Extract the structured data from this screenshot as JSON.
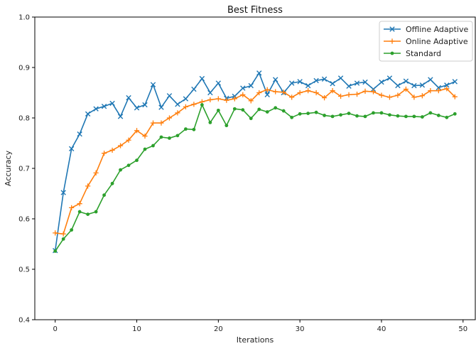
{
  "chart_data": {
    "type": "line",
    "title": "Best Fitness",
    "xlabel": "Iterations",
    "ylabel": "Accuracy",
    "xlim": [
      -2.5,
      51.5
    ],
    "ylim": [
      0.4,
      1.0
    ],
    "xticks": [
      0,
      10,
      20,
      30,
      40,
      50
    ],
    "yticks": [
      0.4,
      0.5,
      0.6,
      0.7,
      0.8,
      0.9,
      1.0
    ],
    "legend_position": "top-right",
    "grid": false,
    "x": [
      0,
      1,
      2,
      3,
      4,
      5,
      6,
      7,
      8,
      9,
      10,
      11,
      12,
      13,
      14,
      15,
      16,
      17,
      18,
      19,
      20,
      21,
      22,
      23,
      24,
      25,
      26,
      27,
      28,
      29,
      30,
      31,
      32,
      33,
      34,
      35,
      36,
      37,
      38,
      39,
      40,
      41,
      42,
      43,
      44,
      45,
      46,
      47,
      48,
      49
    ],
    "series": [
      {
        "name": "Offline Adaptive",
        "color": "#1f77b4",
        "marker": "x",
        "values": [
          0.537,
          0.652,
          0.739,
          0.768,
          0.808,
          0.818,
          0.823,
          0.829,
          0.803,
          0.84,
          0.82,
          0.826,
          0.866,
          0.821,
          0.844,
          0.827,
          0.838,
          0.857,
          0.878,
          0.85,
          0.869,
          0.839,
          0.843,
          0.859,
          0.864,
          0.889,
          0.846,
          0.876,
          0.85,
          0.869,
          0.872,
          0.864,
          0.874,
          0.877,
          0.868,
          0.879,
          0.863,
          0.869,
          0.871,
          0.857,
          0.871,
          0.879,
          0.864,
          0.873,
          0.864,
          0.865,
          0.876,
          0.86,
          0.865,
          0.872
        ]
      },
      {
        "name": "Online Adaptive",
        "color": "#ff7f0e",
        "marker": "+",
        "values": [
          0.572,
          0.57,
          0.622,
          0.63,
          0.665,
          0.691,
          0.73,
          0.736,
          0.745,
          0.756,
          0.775,
          0.764,
          0.79,
          0.79,
          0.8,
          0.81,
          0.822,
          0.827,
          0.832,
          0.836,
          0.838,
          0.835,
          0.838,
          0.846,
          0.834,
          0.85,
          0.856,
          0.852,
          0.851,
          0.841,
          0.85,
          0.854,
          0.85,
          0.84,
          0.854,
          0.843,
          0.846,
          0.847,
          0.853,
          0.852,
          0.845,
          0.841,
          0.845,
          0.857,
          0.841,
          0.844,
          0.854,
          0.854,
          0.858,
          0.842
        ]
      },
      {
        "name": "Standard",
        "color": "#2ca02c",
        "marker": "dot",
        "values": [
          0.536,
          0.56,
          0.578,
          0.614,
          0.609,
          0.614,
          0.647,
          0.67,
          0.697,
          0.706,
          0.716,
          0.738,
          0.745,
          0.762,
          0.76,
          0.765,
          0.778,
          0.777,
          0.826,
          0.791,
          0.815,
          0.785,
          0.818,
          0.816,
          0.799,
          0.817,
          0.812,
          0.82,
          0.814,
          0.801,
          0.808,
          0.809,
          0.811,
          0.805,
          0.803,
          0.806,
          0.809,
          0.804,
          0.803,
          0.81,
          0.81,
          0.806,
          0.804,
          0.803,
          0.803,
          0.802,
          0.81,
          0.805,
          0.801,
          0.808
        ]
      }
    ]
  }
}
